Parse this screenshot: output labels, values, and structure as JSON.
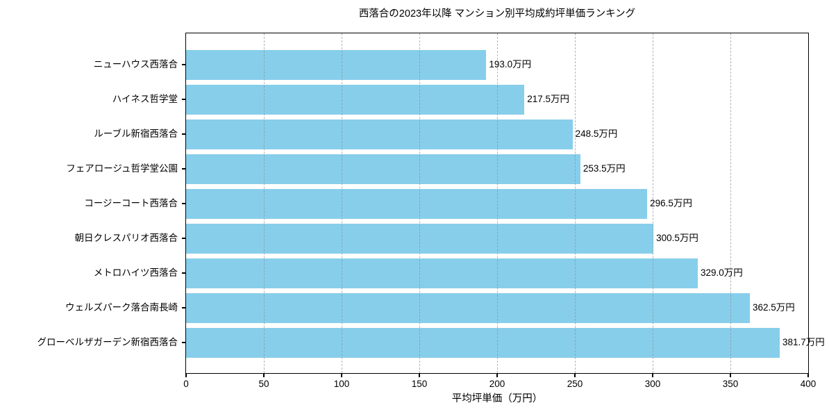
{
  "chart_data": {
    "type": "bar",
    "orientation": "horizontal",
    "title": "西落合の2023年以降 マンション別平均成約坪単価ランキング",
    "xlabel": "平均坪単価（万円）",
    "categories": [
      "ニューハウス西落合",
      "ハイネス哲学堂",
      "ルーブル新宿西落合",
      "フェアロージュ哲学堂公園",
      "コージーコート西落合",
      "朝日クレスパリオ西落合",
      "メトロハイツ西落合",
      "ウェルズパーク落合南長崎",
      "グローベルザガーデン新宿西落合"
    ],
    "values": [
      193.0,
      217.5,
      248.5,
      253.5,
      296.5,
      300.5,
      329.0,
      362.5,
      381.7
    ],
    "value_labels": [
      "193.0万円",
      "217.5万円",
      "248.5万円",
      "253.5万円",
      "296.5万円",
      "300.5万円",
      "329.0万円",
      "362.5万円",
      "381.7万円"
    ],
    "xlim": [
      0,
      400
    ],
    "xticks": [
      0,
      50,
      100,
      150,
      200,
      250,
      300,
      350,
      400
    ],
    "xtick_labels": [
      "0",
      "50",
      "100",
      "150",
      "200",
      "250",
      "300",
      "350",
      "400"
    ],
    "bar_color": "#87CEEB",
    "grid": {
      "axis": "x",
      "style": "dashed",
      "color": "#8c8c8c",
      "position": "above-bars"
    },
    "legend": "none",
    "sort_order": "ascending-top-to-bottom"
  }
}
